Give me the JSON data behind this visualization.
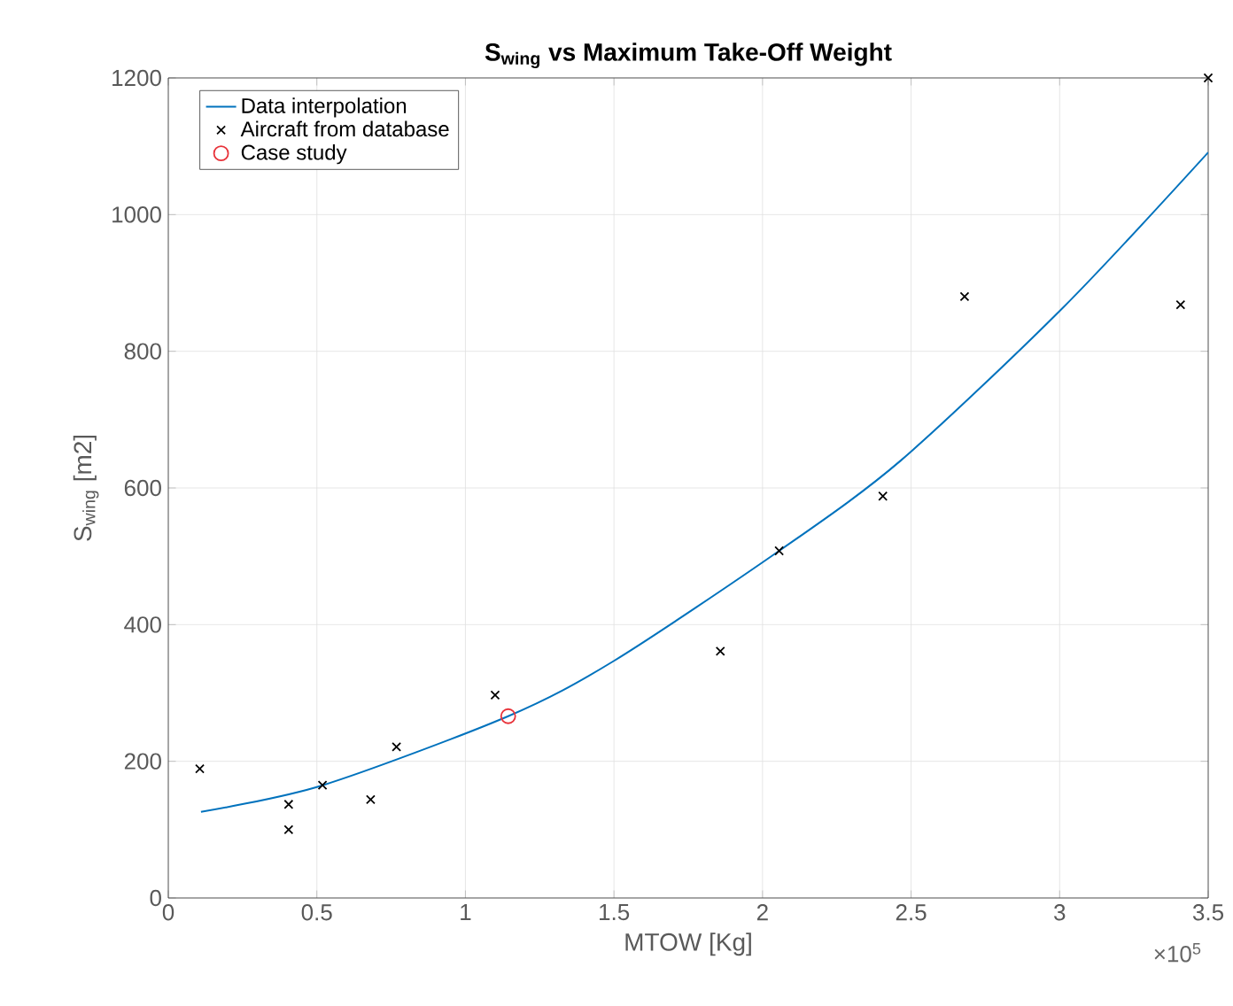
{
  "chart_data": {
    "type": "scatter",
    "title": "**S$_{wing}$ vs Maximum Take-Off Weight**",
    "xlabel": "MTOW [Kg]",
    "ylabel": "S$_{wing}$ [m2]",
    "annotations": [
      "×10$^{5}$"
    ],
    "series": [
      {
        "name": "Data interpolation",
        "type": "line",
        "color": "#0072bd",
        "marker": "none",
        "x": [
          0.11,
          0.52,
          1.144,
          1.5,
          2.056,
          2.465,
          3.014,
          3.5
        ],
        "values": [
          126,
          165,
          266,
          347,
          508,
          640,
          865,
          1091
        ]
      },
      {
        "name": "Aircraft from database",
        "color": "#000000",
        "marker": "cross",
        "x": [
          0.106,
          0.405,
          0.405,
          0.519,
          0.681,
          0.768,
          1.1,
          1.858,
          2.056,
          2.405,
          2.68,
          3.407,
          3.5
        ],
        "values": [
          189,
          137,
          100,
          165,
          144,
          221,
          297,
          361,
          508,
          588,
          880,
          868,
          1200
        ]
      },
      {
        "name": "Case study",
        "color": "#e8333a",
        "marker": "circle",
        "x": [
          1.144
        ],
        "values": [
          266
        ]
      }
    ],
    "xlim": [
      0,
      3.5
    ],
    "ylim": [
      0,
      1200
    ],
    "xticks": [
      0,
      0.5,
      1,
      1.5,
      2,
      2.5,
      3,
      3.5
    ],
    "yticks": [
      0,
      200,
      400,
      600,
      800,
      1000,
      1200
    ],
    "grid": true,
    "legend": "top left"
  }
}
